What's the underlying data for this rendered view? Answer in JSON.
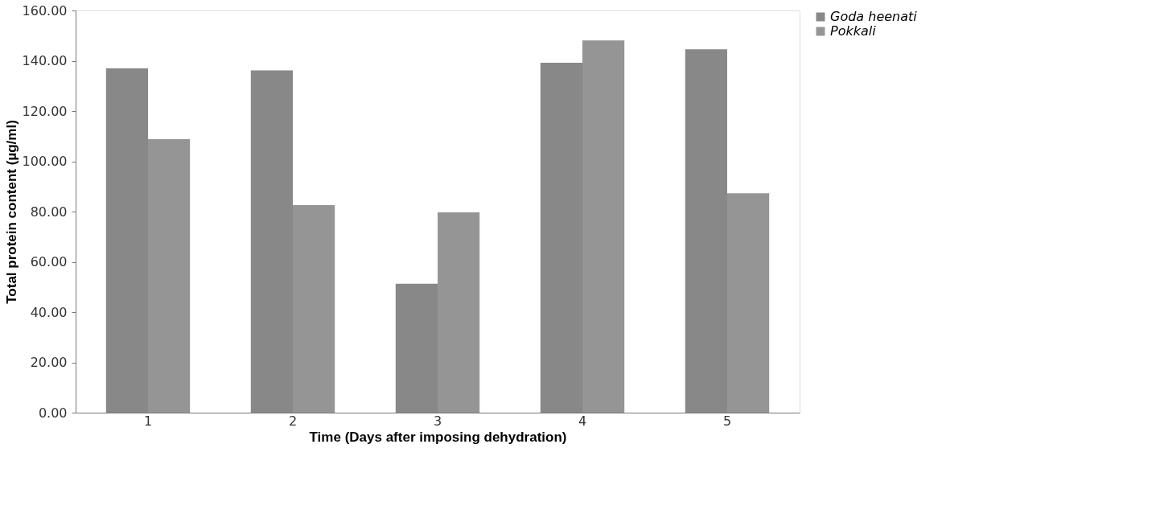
{
  "chart_data": {
    "type": "bar",
    "xlabel": "Time (Days after imposing dehydration)",
    "ylabel": "Total protein content (µg/ml)",
    "categories": [
      "1",
      "2",
      "3",
      "4",
      "5"
    ],
    "series": [
      {
        "name": "Goda heenati",
        "color": "#888888",
        "values": [
          137.0,
          136.2,
          51.3,
          139.2,
          144.6
        ]
      },
      {
        "name": "Pokkali",
        "color": "#959595",
        "values": [
          108.8,
          82.6,
          79.7,
          148.1,
          87.3
        ]
      }
    ],
    "ylim": [
      0,
      160
    ],
    "yticks": [
      {
        "value": 0,
        "label": "0.00"
      },
      {
        "value": 20,
        "label": "20.00"
      },
      {
        "value": 40,
        "label": "40.00"
      },
      {
        "value": 60,
        "label": "60.00"
      },
      {
        "value": 80,
        "label": "80.00"
      },
      {
        "value": 100,
        "label": "100.00"
      },
      {
        "value": 120,
        "label": "120.00"
      },
      {
        "value": 140,
        "label": "140.00"
      },
      {
        "value": 160,
        "label": "160.00"
      }
    ],
    "grid": false,
    "legend": "right"
  }
}
